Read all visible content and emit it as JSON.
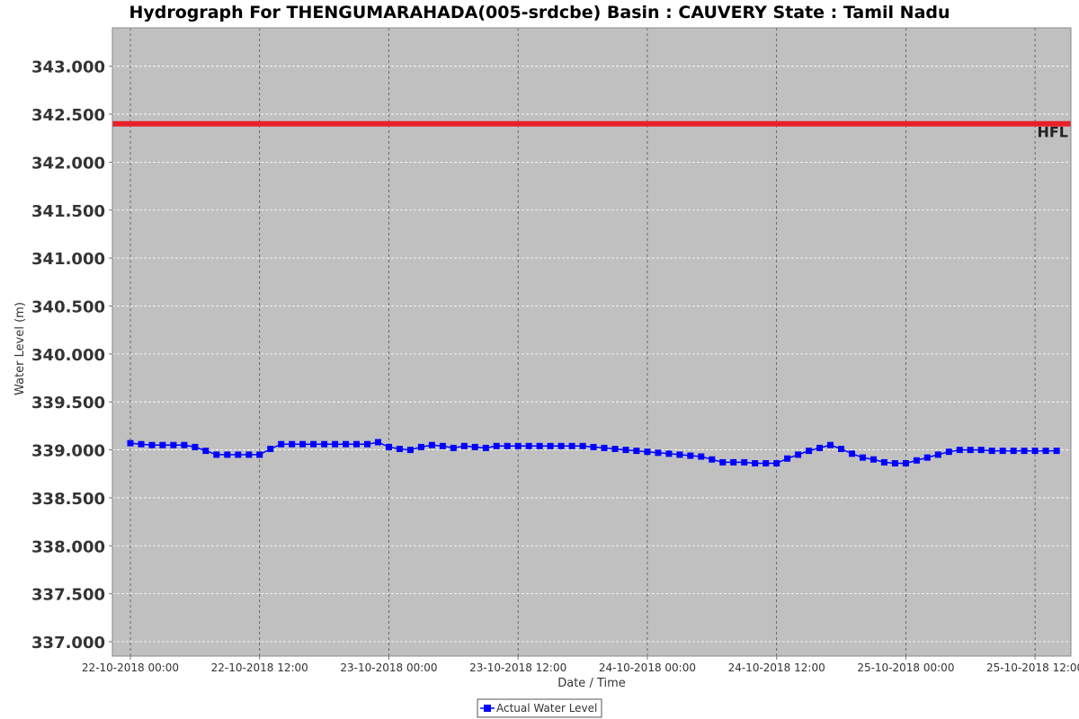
{
  "chart_data": {
    "type": "line",
    "title": "Hydrograph For THENGUMARAHADA(005-srdcbe) Basin : CAUVERY State : Tamil Nadu",
    "xlabel": "Date / Time",
    "ylabel": "Water Level (m)",
    "ylim": [
      336.85,
      343.4
    ],
    "x_range_hours": [
      -1.67,
      87.33
    ],
    "yticks": [
      "337.000",
      "337.500",
      "338.000",
      "338.500",
      "339.000",
      "339.500",
      "340.000",
      "340.500",
      "341.000",
      "341.500",
      "342.000",
      "342.500",
      "343.000"
    ],
    "xticks": [
      {
        "label": "22-10-2018 00:00",
        "hour": 0
      },
      {
        "label": "22-10-2018 12:00",
        "hour": 12
      },
      {
        "label": "23-10-2018 00:00",
        "hour": 24
      },
      {
        "label": "23-10-2018 12:00",
        "hour": 36
      },
      {
        "label": "24-10-2018 00:00",
        "hour": 48
      },
      {
        "label": "24-10-2018 12:00",
        "hour": 60
      },
      {
        "label": "25-10-2018 00:00",
        "hour": 72
      },
      {
        "label": "25-10-2018 12:00",
        "hour": 84
      }
    ],
    "grid": true,
    "threshold": {
      "label": "HFL",
      "value": 342.4,
      "color": "#e8202a"
    },
    "legend": {
      "placement": "bottom-center"
    },
    "series": [
      {
        "name": "Actual Water Level",
        "color": "#0000ff",
        "start": "22-10-2018 00:00",
        "interval_hours": 1,
        "values": [
          339.07,
          339.06,
          339.05,
          339.05,
          339.05,
          339.05,
          339.03,
          338.99,
          338.95,
          338.95,
          338.95,
          338.95,
          338.95,
          339.01,
          339.06,
          339.06,
          339.06,
          339.06,
          339.06,
          339.06,
          339.06,
          339.06,
          339.06,
          339.08,
          339.03,
          339.01,
          339.0,
          339.03,
          339.05,
          339.04,
          339.02,
          339.04,
          339.03,
          339.02,
          339.04,
          339.04,
          339.04,
          339.04,
          339.04,
          339.04,
          339.04,
          339.04,
          339.04,
          339.03,
          339.02,
          339.01,
          339.0,
          338.99,
          338.98,
          338.97,
          338.96,
          338.95,
          338.94,
          338.93,
          338.9,
          338.87,
          338.87,
          338.87,
          338.86,
          338.86,
          338.86,
          338.91,
          338.95,
          338.99,
          339.02,
          339.05,
          339.01,
          338.96,
          338.92,
          338.9,
          338.87,
          338.86,
          338.86,
          338.89,
          338.92,
          338.95,
          338.98,
          339.0,
          339.0,
          339.0,
          338.99,
          338.99,
          338.99,
          338.99,
          338.99,
          338.99,
          338.99
        ]
      }
    ]
  },
  "colors": {
    "plot_background": "#c0c0c0",
    "grid_line": "#ffffff",
    "x_grid_line": "#555555"
  }
}
